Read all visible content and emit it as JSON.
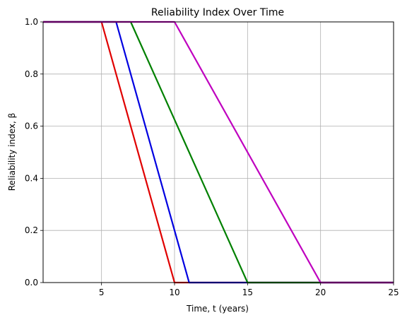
{
  "chart_data": {
    "type": "line",
    "title": "Reliability Index Over Time",
    "xlabel": "Time, t (years)",
    "ylabel": "Reliability index, β",
    "xlim": [
      1,
      25
    ],
    "ylim": [
      0,
      1
    ],
    "xticks": [
      5,
      10,
      15,
      20,
      25
    ],
    "yticks": [
      0.0,
      0.2,
      0.4,
      0.6,
      0.8,
      1.0
    ],
    "grid": true,
    "series": [
      {
        "color": "#e00000",
        "x": [
          1,
          5,
          10,
          25
        ],
        "y": [
          1.0,
          1.0,
          0.0,
          0.0
        ]
      },
      {
        "color": "#0000e0",
        "x": [
          1,
          6,
          11,
          25
        ],
        "y": [
          1.0,
          1.0,
          0.0,
          0.0
        ]
      },
      {
        "color": "#008000",
        "x": [
          1,
          7,
          15,
          25
        ],
        "y": [
          1.0,
          1.0,
          0.0,
          0.0
        ]
      },
      {
        "color": "#bf00bf",
        "x": [
          1,
          10,
          20,
          25
        ],
        "y": [
          1.0,
          1.0,
          0.0,
          0.0
        ]
      }
    ]
  }
}
